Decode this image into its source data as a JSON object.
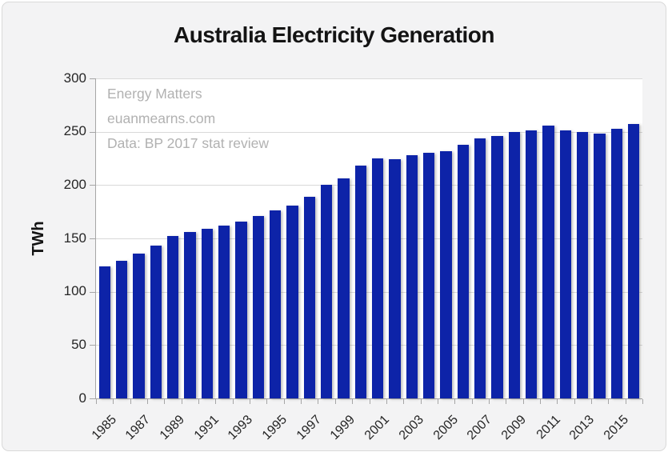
{
  "chart": {
    "title": "Australia Electricity Generation",
    "y_axis_label": "TWh",
    "annotation_lines": [
      "Energy Matters",
      "euanmearns.com",
      "Data: BP 2017 stat review"
    ]
  },
  "chart_data": {
    "type": "bar",
    "title": "Australia Electricity Generation",
    "ylabel": "TWh",
    "xlabel": "",
    "ylim": [
      0,
      300
    ],
    "y_ticks": [
      0,
      50,
      100,
      150,
      200,
      250,
      300
    ],
    "x_tick_labels": [
      "1985",
      "1987",
      "1989",
      "1991",
      "1993",
      "1995",
      "1997",
      "1999",
      "2001",
      "2003",
      "2005",
      "2007",
      "2009",
      "2011",
      "2013",
      "2015"
    ],
    "categories": [
      "1985",
      "1986",
      "1987",
      "1988",
      "1989",
      "1990",
      "1991",
      "1992",
      "1993",
      "1994",
      "1995",
      "1996",
      "1997",
      "1998",
      "1999",
      "2000",
      "2001",
      "2002",
      "2003",
      "2004",
      "2005",
      "2006",
      "2007",
      "2008",
      "2009",
      "2010",
      "2011",
      "2012",
      "2013",
      "2014",
      "2015",
      "2016"
    ],
    "values": [
      124,
      129,
      136,
      143,
      152,
      156,
      159,
      162,
      166,
      171,
      176,
      181,
      189,
      200,
      206,
      218,
      225,
      224,
      228,
      230,
      232,
      238,
      244,
      246,
      250,
      251,
      256,
      251,
      250,
      248,
      253,
      257
    ],
    "grid": "horizontal",
    "legend": "none",
    "annotations": [
      "Energy Matters",
      "euanmearns.com",
      "Data: BP 2017 stat review"
    ],
    "bar_color": "#0d23a8",
    "gridline_color": "#d9d9d9",
    "axis_color": "#a6a6a6",
    "annotation_color": "#b1b1b1",
    "plot_background": "#ffffff",
    "chart_background": "#f3f3f4"
  }
}
